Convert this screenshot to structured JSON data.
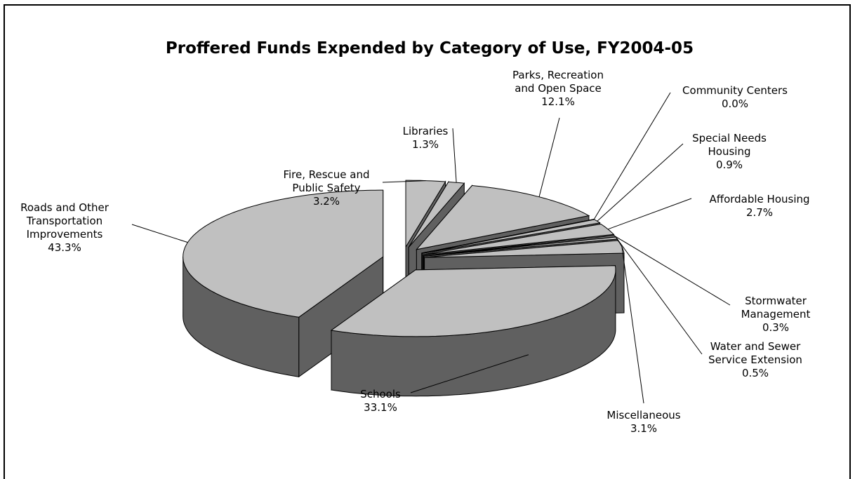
{
  "chart_data": {
    "type": "pie3d",
    "title": "Proffered Funds Expended by Category of Use, FY2004-05",
    "categories": [
      "Fire, Rescue and\nPublic Safety",
      "Libraries",
      "Parks, Recreation\nand Open Space",
      "Community Centers",
      "Special Needs\nHousing",
      "Affordable Housing",
      "Stormwater\nManagement",
      "Water and Sewer\nService Extension",
      "Miscellaneous",
      "Schools",
      "Roads and Other\nTransportation\nImprovements"
    ],
    "values": [
      3.2,
      1.3,
      12.1,
      0.0,
      0.9,
      2.7,
      0.3,
      0.5,
      3.1,
      33.1,
      43.3
    ],
    "value_labels": [
      "3.2%",
      "1.3%",
      "12.1%",
      "0.0%",
      "0.9%",
      "2.7%",
      "0.3%",
      "0.5%",
      "3.1%",
      "33.1%",
      "43.3%"
    ],
    "top_color": "#c0c0c0",
    "side_color": "#606060"
  }
}
